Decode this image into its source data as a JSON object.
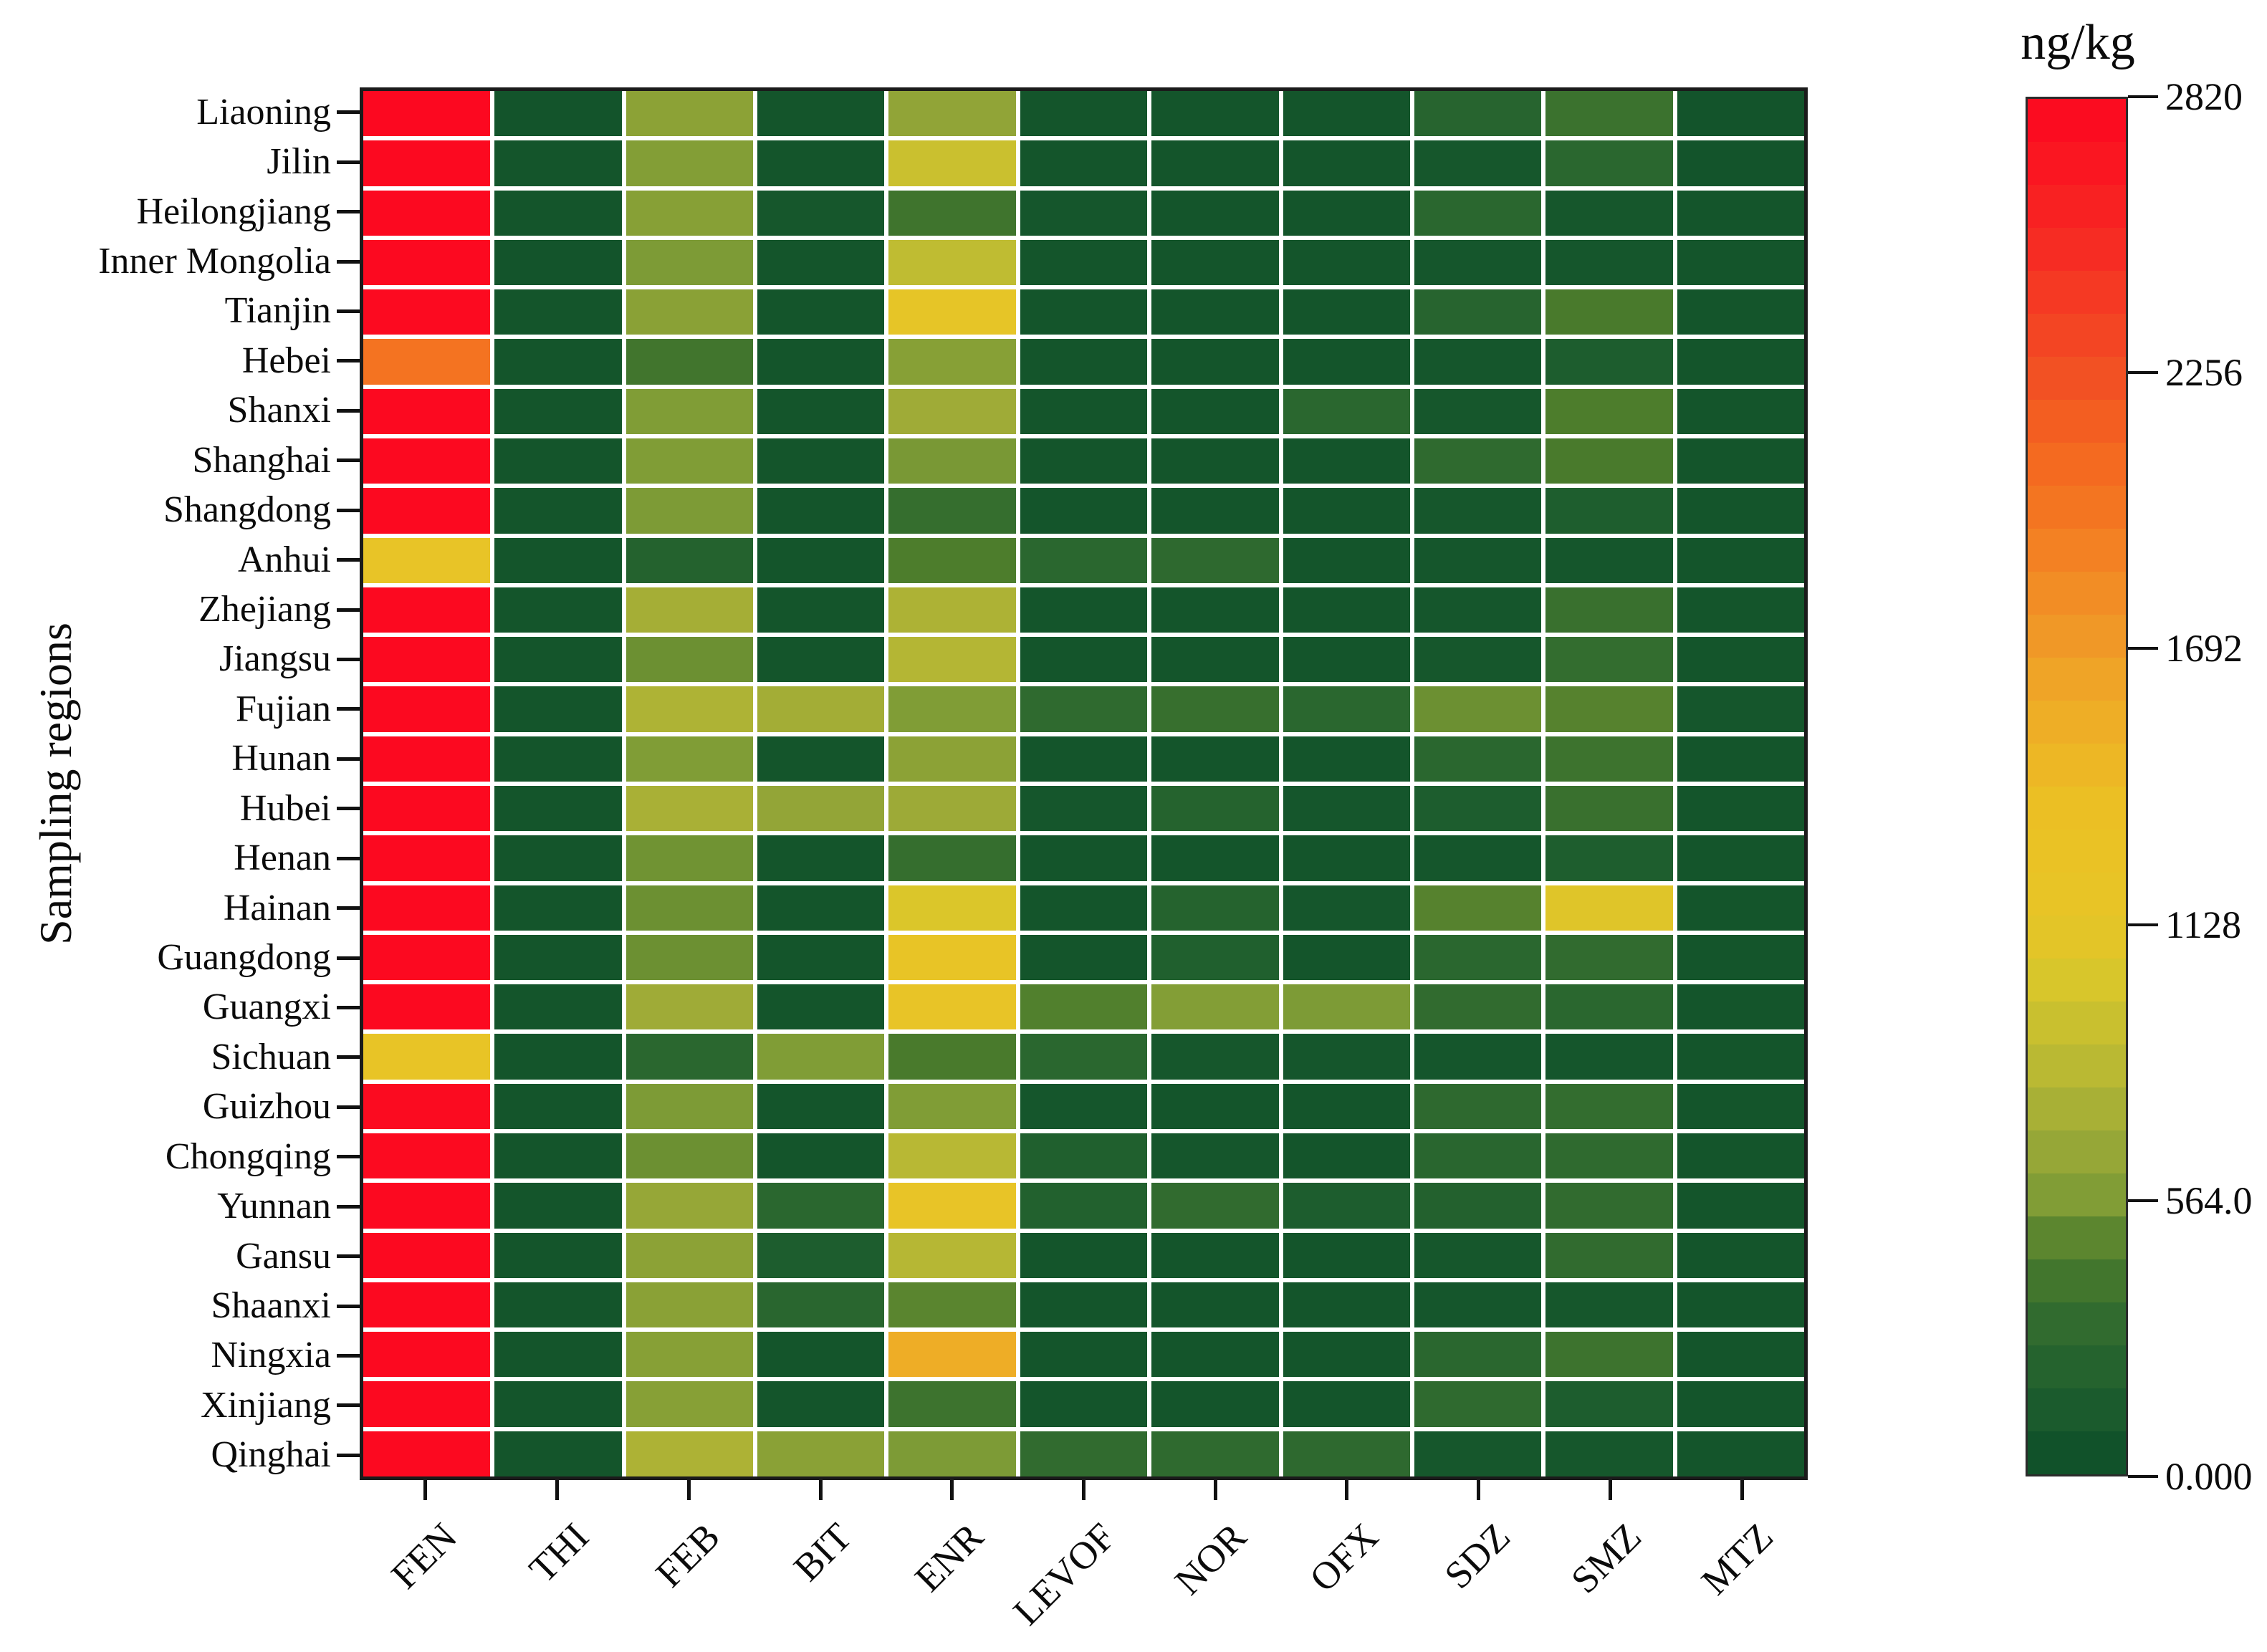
{
  "figure": {
    "y_axis_title": "Sampling regions",
    "colorbar_title": "ng/kg"
  },
  "chart_data": {
    "type": "heatmap",
    "ylabel": "Sampling regions",
    "unit": "ng/kg",
    "legend_position": "right",
    "grid": false,
    "rows": [
      "Liaoning",
      "Jilin",
      "Heilongjiang",
      "Inner Mongolia",
      "Tianjin",
      "Hebei",
      "Shanxi",
      "Shanghai",
      "Shangdong",
      "Anhui",
      "Zhejiang",
      "Jiangsu",
      "Fujian",
      "Hunan",
      "Hubei",
      "Henan",
      "Hainan",
      "Guangdong",
      "Guangxi",
      "Sichuan",
      "Guizhou",
      "Chongqing",
      "Yunnan",
      "Gansu",
      "Shaanxi",
      "Ningxia",
      "Xinjiang",
      "Qinghai"
    ],
    "columns": [
      "FEN",
      "THI",
      "FEB",
      "BIT",
      "ENR",
      "LEVOF",
      "NOR",
      "OFX",
      "SDZ",
      "SMZ",
      "MTZ"
    ],
    "values": [
      [
        2810,
        60,
        620,
        70,
        640,
        70,
        70,
        70,
        230,
        360,
        60
      ],
      [
        2800,
        70,
        580,
        70,
        930,
        70,
        70,
        70,
        90,
        260,
        60
      ],
      [
        2800,
        70,
        600,
        90,
        380,
        80,
        70,
        70,
        260,
        90,
        70
      ],
      [
        2800,
        60,
        560,
        70,
        870,
        70,
        70,
        70,
        80,
        80,
        70
      ],
      [
        2790,
        70,
        610,
        70,
        1120,
        70,
        70,
        70,
        230,
        430,
        70
      ],
      [
        2000,
        70,
        390,
        70,
        600,
        70,
        70,
        70,
        80,
        150,
        70
      ],
      [
        2800,
        70,
        570,
        70,
        700,
        70,
        70,
        260,
        90,
        450,
        70
      ],
      [
        2800,
        70,
        570,
        70,
        550,
        70,
        70,
        70,
        300,
        430,
        70
      ],
      [
        2800,
        70,
        560,
        70,
        330,
        70,
        70,
        70,
        90,
        160,
        70
      ],
      [
        1160,
        70,
        210,
        70,
        450,
        260,
        290,
        70,
        80,
        80,
        70
      ],
      [
        2800,
        70,
        730,
        70,
        770,
        70,
        70,
        70,
        80,
        350,
        70
      ],
      [
        2800,
        70,
        520,
        70,
        810,
        70,
        70,
        70,
        90,
        320,
        70
      ],
      [
        2800,
        70,
        780,
        720,
        570,
        300,
        340,
        260,
        520,
        470,
        80
      ],
      [
        2800,
        70,
        570,
        70,
        620,
        70,
        70,
        70,
        260,
        370,
        70
      ],
      [
        2800,
        70,
        750,
        650,
        690,
        80,
        220,
        80,
        150,
        350,
        70
      ],
      [
        2800,
        70,
        530,
        70,
        330,
        70,
        70,
        70,
        80,
        160,
        70
      ],
      [
        2800,
        70,
        520,
        70,
        1040,
        70,
        220,
        80,
        470,
        1070,
        70
      ],
      [
        2800,
        70,
        520,
        70,
        1170,
        70,
        180,
        70,
        260,
        310,
        70
      ],
      [
        2800,
        70,
        700,
        70,
        1160,
        460,
        580,
        560,
        310,
        260,
        70
      ],
      [
        1200,
        70,
        260,
        570,
        430,
        260,
        90,
        80,
        80,
        80,
        70
      ],
      [
        2780,
        70,
        560,
        70,
        570,
        80,
        70,
        70,
        290,
        320,
        70
      ],
      [
        2790,
        70,
        520,
        70,
        830,
        180,
        80,
        70,
        250,
        300,
        70
      ],
      [
        2800,
        70,
        660,
        260,
        1160,
        190,
        310,
        150,
        200,
        310,
        70
      ],
      [
        2800,
        70,
        620,
        150,
        820,
        70,
        70,
        70,
        90,
        310,
        70
      ],
      [
        2800,
        70,
        610,
        250,
        480,
        70,
        70,
        70,
        80,
        90,
        70
      ],
      [
        2800,
        70,
        600,
        70,
        1550,
        70,
        70,
        70,
        260,
        370,
        70
      ],
      [
        2800,
        70,
        600,
        70,
        370,
        70,
        70,
        70,
        300,
        150,
        70
      ],
      [
        2800,
        70,
        770,
        610,
        560,
        310,
        300,
        290,
        90,
        90,
        70
      ]
    ],
    "vmin": 0,
    "vmax": 2820,
    "colorbar_ticks": [
      {
        "value": 2820,
        "label": "2820"
      },
      {
        "value": 2256,
        "label": "2256"
      },
      {
        "value": 1692,
        "label": "1692"
      },
      {
        "value": 1128,
        "label": "1128"
      },
      {
        "value": 564,
        "label": "564.0"
      },
      {
        "value": 0,
        "label": "0.000"
      }
    ],
    "colormap": [
      [
        0,
        "#0c4e29"
      ],
      [
        160,
        "#1e5e2e"
      ],
      [
        300,
        "#2f6a2f"
      ],
      [
        450,
        "#4d7d2c"
      ],
      [
        564,
        "#7f9c36"
      ],
      [
        700,
        "#9fab37"
      ],
      [
        850,
        "#bcba33"
      ],
      [
        1000,
        "#d6c62c"
      ],
      [
        1128,
        "#e7c527"
      ],
      [
        1350,
        "#ebc124"
      ],
      [
        1600,
        "#efa827"
      ],
      [
        1692,
        "#f09c28"
      ],
      [
        1900,
        "#f38023"
      ],
      [
        2100,
        "#f4661f"
      ],
      [
        2256,
        "#f25023"
      ],
      [
        2500,
        "#f62e23"
      ],
      [
        2700,
        "#fa1421"
      ],
      [
        2820,
        "#fc0720"
      ]
    ]
  }
}
